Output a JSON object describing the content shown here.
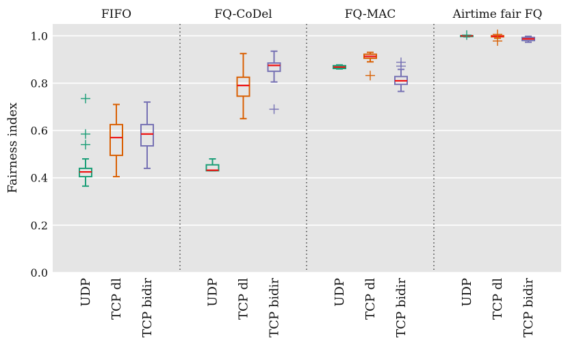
{
  "chart_data": {
    "type": "box",
    "ylabel": "Fairness index",
    "ylim": [
      0.0,
      1.05
    ],
    "yticks": [
      "0.0",
      "0.2",
      "0.4",
      "0.6",
      "0.8",
      "1.0"
    ],
    "ytick_values": [
      0.0,
      0.2,
      0.4,
      0.6,
      0.8,
      1.0
    ],
    "grid": true,
    "categories": [
      "UDP",
      "TCP dl",
      "TCP bidir"
    ],
    "series_colors": {
      "UDP": "#1b9e77",
      "TCP dl": "#d95f02",
      "TCP bidir": "#7570b3"
    },
    "median_color": "#ee1111",
    "panels": [
      {
        "title": "FIFO",
        "boxes": [
          {
            "category": "UDP",
            "whisker_low": 0.365,
            "q1": 0.405,
            "median": 0.425,
            "q3": 0.44,
            "whisker_high": 0.48,
            "outliers": [
              0.735,
              0.585,
              0.54
            ]
          },
          {
            "category": "TCP dl",
            "whisker_low": 0.405,
            "q1": 0.495,
            "median": 0.57,
            "q3": 0.625,
            "whisker_high": 0.71,
            "outliers": []
          },
          {
            "category": "TCP bidir",
            "whisker_low": 0.44,
            "q1": 0.535,
            "median": 0.585,
            "q3": 0.625,
            "whisker_high": 0.72,
            "outliers": []
          }
        ]
      },
      {
        "title": "FQ-CoDel",
        "boxes": [
          {
            "category": "UDP",
            "whisker_low": 0.43,
            "q1": 0.43,
            "median": 0.432,
            "q3": 0.455,
            "whisker_high": 0.48,
            "outliers": []
          },
          {
            "category": "TCP dl",
            "whisker_low": 0.65,
            "q1": 0.745,
            "median": 0.79,
            "q3": 0.825,
            "whisker_high": 0.925,
            "outliers": []
          },
          {
            "category": "TCP bidir",
            "whisker_low": 0.805,
            "q1": 0.85,
            "median": 0.875,
            "q3": 0.885,
            "whisker_high": 0.935,
            "outliers": [
              0.69
            ]
          }
        ]
      },
      {
        "title": "FQ-MAC",
        "boxes": [
          {
            "category": "UDP",
            "whisker_low": 0.86,
            "q1": 0.862,
            "median": 0.868,
            "q3": 0.874,
            "whisker_high": 0.877,
            "outliers": []
          },
          {
            "category": "TCP dl",
            "whisker_low": 0.89,
            "q1": 0.905,
            "median": 0.913,
            "q3": 0.922,
            "whisker_high": 0.93,
            "outliers": [
              0.832
            ]
          },
          {
            "category": "TCP bidir",
            "whisker_low": 0.765,
            "q1": 0.795,
            "median": 0.81,
            "q3": 0.828,
            "whisker_high": 0.858,
            "outliers": [
              0.872,
              0.888
            ]
          }
        ]
      },
      {
        "title": "Airtime fair FQ",
        "boxes": [
          {
            "category": "UDP",
            "whisker_low": 0.996,
            "q1": 0.999,
            "median": 1.0,
            "q3": 1.0,
            "whisker_high": 1.0,
            "outliers": [
              1.003
            ]
          },
          {
            "category": "TCP dl",
            "whisker_low": 0.99,
            "q1": 0.996,
            "median": 0.998,
            "q3": 1.0,
            "whisker_high": 1.0,
            "outliers": [
              0.978,
              1.006
            ]
          },
          {
            "category": "TCP bidir",
            "whisker_low": 0.973,
            "q1": 0.98,
            "median": 0.987,
            "q3": 0.993,
            "whisker_high": 0.998,
            "outliers": []
          }
        ]
      }
    ]
  }
}
